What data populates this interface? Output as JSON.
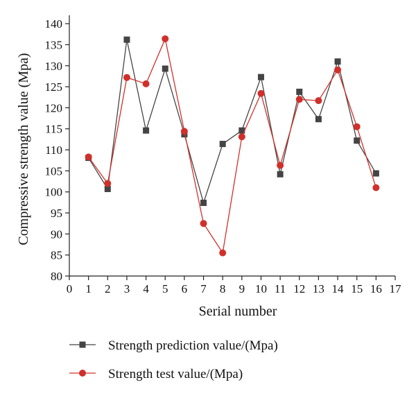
{
  "chart_data": {
    "type": "line",
    "title": "",
    "xlabel": "Serial number",
    "ylabel": "Compressive strength value (Mpa)",
    "xlim": [
      0,
      17
    ],
    "ylim": [
      80,
      142
    ],
    "xticks": [
      0,
      1,
      2,
      3,
      4,
      5,
      6,
      7,
      8,
      9,
      10,
      11,
      12,
      13,
      14,
      15,
      16,
      17
    ],
    "yticks": [
      80,
      85,
      90,
      95,
      100,
      105,
      110,
      115,
      120,
      125,
      130,
      135,
      140
    ],
    "grid": false,
    "legend_position": "bottom",
    "x": [
      1,
      2,
      3,
      4,
      5,
      6,
      7,
      8,
      9,
      10,
      11,
      12,
      13,
      14,
      15,
      16
    ],
    "series": [
      {
        "name": "Strength prediction value/(Mpa)",
        "color": "#444444",
        "marker": "square",
        "values": [
          108.1,
          100.7,
          136.2,
          114.6,
          129.3,
          113.7,
          97.4,
          111.4,
          114.6,
          127.3,
          104.2,
          123.8,
          117.3,
          131.0,
          112.2,
          104.4
        ]
      },
      {
        "name": "Strength test value/(Mpa)",
        "color": "#d0302b",
        "marker": "circle",
        "values": [
          108.3,
          102.0,
          127.2,
          125.7,
          136.4,
          114.4,
          92.5,
          85.5,
          113.1,
          123.4,
          106.3,
          122.0,
          121.7,
          129.0,
          115.5,
          101.0
        ]
      }
    ]
  }
}
